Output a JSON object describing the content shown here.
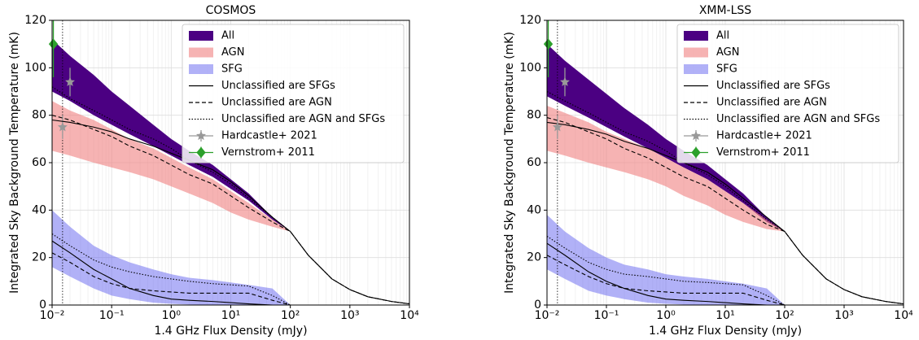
{
  "chart_data": [
    {
      "type": "line",
      "title": "COSMOS",
      "xlabel": "1.4 GHz Flux Density (mJy)",
      "ylabel": "Integrated Sky Background Temperature (mK)",
      "xscale": "log",
      "xlim": [
        0.01,
        10000
      ],
      "ylim": [
        0,
        120
      ],
      "grid": true,
      "xticks": [
        {
          "value": 0.01,
          "label": "10⁻²"
        },
        {
          "value": 0.1,
          "label": "10⁻¹"
        },
        {
          "value": 1,
          "label": "10⁰"
        },
        {
          "value": 10,
          "label": "10¹"
        },
        {
          "value": 100,
          "label": "10²"
        },
        {
          "value": 1000,
          "label": "10³"
        },
        {
          "value": 10000,
          "label": "10⁴"
        }
      ],
      "yticks": [
        0,
        20,
        40,
        60,
        80,
        100,
        120
      ],
      "vline": 0.015,
      "x": [
        0.01,
        0.02,
        0.05,
        0.1,
        0.2,
        0.5,
        1,
        2,
        5,
        10,
        20,
        50,
        100,
        200,
        500,
        1000,
        2000,
        5000,
        10000
      ],
      "series": [
        {
          "name": "All",
          "kind": "band",
          "color": "#4b0082",
          "opacity": 1,
          "upper": [
            112,
            105,
            97,
            90,
            84,
            76,
            70,
            65,
            59,
            53,
            47,
            37,
            31,
            21,
            11,
            6.5,
            3.5,
            1.5,
            0.5
          ],
          "lower": [
            90,
            86,
            80,
            76,
            72,
            67,
            63,
            59,
            54,
            49,
            44,
            36,
            31,
            21,
            11,
            6.5,
            3.5,
            1.5,
            0.5
          ]
        },
        {
          "name": "AGN",
          "kind": "band",
          "color": "#f08080",
          "opacity": 0.6,
          "upper": [
            86,
            82,
            78,
            74,
            70,
            66,
            62,
            58,
            53,
            48,
            43,
            36,
            31,
            21,
            11,
            6.5,
            3.5,
            1.5,
            0.5
          ],
          "lower": [
            65,
            63,
            60,
            58,
            56,
            53,
            50,
            47,
            43,
            39,
            36,
            33,
            31,
            21,
            11,
            6.5,
            3.5,
            1.5,
            0.5
          ]
        },
        {
          "name": "SFG",
          "kind": "band",
          "color": "#6464f0",
          "opacity": 0.5,
          "upper": [
            40,
            33,
            25,
            21,
            18,
            15,
            13,
            11.5,
            10.5,
            9.5,
            8.5,
            7,
            0,
            0,
            0,
            0,
            0,
            0,
            0
          ],
          "lower": [
            16,
            12,
            7,
            4,
            2.5,
            1,
            0.5,
            0.2,
            0.1,
            0,
            0,
            0,
            0,
            0,
            0,
            0,
            0,
            0,
            0
          ]
        },
        {
          "name": "Unclassified are SFGs",
          "kind": "line",
          "color": "#000000",
          "dash": "none",
          "agn_values": [
            78,
            77,
            75,
            73,
            70,
            67,
            64,
            61,
            57,
            52,
            46,
            37,
            31,
            21,
            11,
            6.5,
            3.5,
            1.5,
            0.5
          ],
          "sfg_values": [
            27,
            22,
            15,
            11,
            7,
            4,
            2.5,
            2,
            1.5,
            1,
            0.5,
            0,
            0,
            0,
            0,
            0,
            0,
            0,
            0
          ]
        },
        {
          "name": "Unclassified are AGN",
          "kind": "line",
          "color": "#000000",
          "dash": "5,3",
          "agn_values": [
            80,
            78,
            74,
            71,
            67,
            63,
            59,
            55,
            51,
            46,
            41,
            35,
            31,
            21,
            11,
            6.5,
            3.5,
            1.5,
            0.5
          ],
          "sfg_values": [
            22,
            18,
            12,
            9,
            7,
            6,
            5.5,
            5,
            5,
            5,
            5,
            2,
            0,
            0,
            0,
            0,
            0,
            0,
            0
          ]
        },
        {
          "name": "Unclassified are AGN and SFGs",
          "kind": "line",
          "color": "#000000",
          "dash": "1.5,2",
          "agn_values": [
            92,
            87,
            82,
            78,
            74,
            70,
            66,
            61,
            56,
            51,
            45,
            37,
            31,
            21,
            11,
            6.5,
            3.5,
            1.5,
            0.5
          ],
          "sfg_values": [
            30,
            25,
            19,
            16,
            14,
            12,
            11,
            10,
            9,
            8.5,
            8,
            4,
            0,
            0,
            0,
            0,
            0,
            0,
            0
          ]
        },
        {
          "name": "Hardcastle+ 2021",
          "kind": "errorbar",
          "color": "#999999",
          "marker": "star",
          "x": [
            0.015,
            0.02
          ],
          "values": [
            75,
            94
          ],
          "errors": [
            5,
            6
          ]
        },
        {
          "name": "Vernstrom+ 2011",
          "kind": "errorbar",
          "color": "#2ca02c",
          "marker": "diamond",
          "x": [
            0.0105
          ],
          "values": [
            110
          ],
          "errors": [
            14
          ]
        }
      ]
    },
    {
      "type": "line",
      "title": "XMM-LSS",
      "xlabel": "1.4 GHz Flux Density (mJy)",
      "ylabel": "Integrated Sky Background Temperature (mK)",
      "xscale": "log",
      "xlim": [
        0.01,
        10000
      ],
      "ylim": [
        0,
        120
      ],
      "grid": true,
      "xticks": [
        {
          "value": 0.01,
          "label": "10⁻²"
        },
        {
          "value": 0.1,
          "label": "10⁻¹"
        },
        {
          "value": 1,
          "label": "10⁰"
        },
        {
          "value": 10,
          "label": "10¹"
        },
        {
          "value": 100,
          "label": "10²"
        },
        {
          "value": 1000,
          "label": "10³"
        },
        {
          "value": 10000,
          "label": "10⁴"
        }
      ],
      "yticks": [
        0,
        20,
        40,
        60,
        80,
        100,
        120
      ],
      "vline": 0.015,
      "x": [
        0.01,
        0.02,
        0.05,
        0.1,
        0.2,
        0.5,
        1,
        2,
        5,
        10,
        20,
        50,
        100,
        200,
        500,
        1000,
        2000,
        5000,
        10000
      ],
      "series": [
        {
          "name": "All",
          "kind": "band",
          "color": "#4b0082",
          "opacity": 1,
          "upper": [
            110,
            103,
            95,
            89,
            83,
            76,
            70,
            65,
            59,
            53,
            47,
            37,
            31,
            21,
            11,
            6.5,
            3.5,
            1.5,
            0.5
          ],
          "lower": [
            88,
            84,
            79,
            75,
            71,
            66,
            62,
            58,
            53,
            48,
            43,
            35,
            31,
            21,
            11,
            6.5,
            3.5,
            1.5,
            0.5
          ]
        },
        {
          "name": "AGN",
          "kind": "band",
          "color": "#f08080",
          "opacity": 0.6,
          "upper": [
            84,
            81,
            77,
            73,
            70,
            66,
            62,
            58,
            53,
            48,
            43,
            36,
            31,
            21,
            11,
            6.5,
            3.5,
            1.5,
            0.5
          ],
          "lower": [
            65,
            63,
            60,
            58,
            56,
            53,
            50,
            46,
            42,
            38,
            35,
            32,
            31,
            21,
            11,
            6.5,
            3.5,
            1.5,
            0.5
          ]
        },
        {
          "name": "SFG",
          "kind": "band",
          "color": "#6464f0",
          "opacity": 0.5,
          "upper": [
            38,
            31,
            24,
            20,
            17,
            15,
            13,
            12,
            11,
            10,
            9,
            7,
            0,
            0,
            0,
            0,
            0,
            0,
            0
          ],
          "lower": [
            15,
            11,
            6,
            4,
            2.5,
            1,
            0.5,
            0.2,
            0.1,
            0,
            0,
            0,
            0,
            0,
            0,
            0,
            0,
            0,
            0
          ]
        },
        {
          "name": "Unclassified are SFGs",
          "kind": "line",
          "color": "#000000",
          "dash": "none",
          "agn_values": [
            77,
            76,
            74,
            72,
            69,
            66,
            63,
            60,
            56,
            51,
            45,
            37,
            31,
            21,
            11,
            6.5,
            3.5,
            1.5,
            0.5
          ],
          "sfg_values": [
            26,
            21,
            14,
            10,
            7,
            4,
            2.5,
            2,
            1.5,
            1,
            0.5,
            0,
            0,
            0,
            0,
            0,
            0,
            0,
            0
          ]
        },
        {
          "name": "Unclassified are AGN",
          "kind": "line",
          "color": "#000000",
          "dash": "5,3",
          "agn_values": [
            79,
            77,
            73,
            70,
            66,
            62,
            58,
            54,
            50,
            45,
            40,
            34,
            31,
            21,
            11,
            6.5,
            3.5,
            1.5,
            0.5
          ],
          "sfg_values": [
            21,
            17,
            12,
            9,
            7,
            6,
            5.5,
            5,
            5,
            5,
            5,
            2,
            0,
            0,
            0,
            0,
            0,
            0,
            0
          ]
        },
        {
          "name": "Unclassified are AGN and SFGs",
          "kind": "line",
          "color": "#000000",
          "dash": "1.5,2",
          "agn_values": [
            90,
            86,
            81,
            77,
            73,
            69,
            65,
            60,
            55,
            50,
            44,
            36,
            31,
            21,
            11,
            6.5,
            3.5,
            1.5,
            0.5
          ],
          "sfg_values": [
            29,
            24,
            18,
            15,
            13,
            12,
            11,
            10,
            9.5,
            9,
            8.5,
            4,
            0,
            0,
            0,
            0,
            0,
            0,
            0
          ]
        },
        {
          "name": "Hardcastle+ 2021",
          "kind": "errorbar",
          "color": "#999999",
          "marker": "star",
          "x": [
            0.015,
            0.02
          ],
          "values": [
            75,
            94
          ],
          "errors": [
            5,
            6
          ]
        },
        {
          "name": "Vernstrom+ 2011",
          "kind": "errorbar",
          "color": "#2ca02c",
          "marker": "diamond",
          "x": [
            0.0105
          ],
          "values": [
            110
          ],
          "errors": [
            14
          ]
        }
      ]
    }
  ]
}
